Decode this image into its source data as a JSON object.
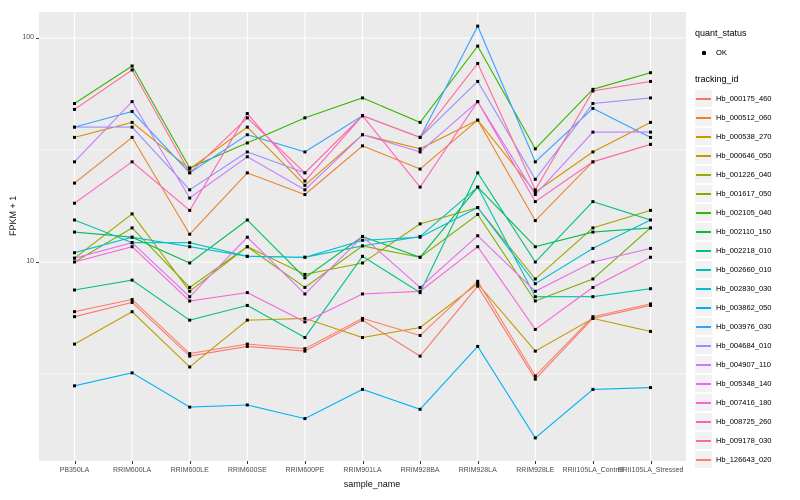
{
  "figure": {
    "background": "#ffffff",
    "panel_background": "#ebebeb",
    "gridline_color": "#ffffff",
    "tick_text_color": "#4d4d4d"
  },
  "legend": {
    "quant_status": {
      "title": "quant_status",
      "items": [
        {
          "label": "OK",
          "marker": "black-point"
        }
      ]
    },
    "tracking_id_title": "tracking_id"
  },
  "chart_data": {
    "type": "line",
    "title": "",
    "xlabel": "sample_name",
    "ylabel": "FPKM + 1",
    "y_scale": "log10",
    "y_tick_labels": [
      "100",
      "10"
    ],
    "y_tick_values": [
      100,
      10
    ],
    "y_minor_values": [
      31.62,
      3.162
    ],
    "ylim": [
      1.3,
      135
    ],
    "grid": true,
    "legend_position": "right",
    "point_marker": "black-dot",
    "x_categories": [
      "PB350LA",
      "RRIM600LA",
      "RRIM600LE",
      "RRIM600SE",
      "RRIM600PE",
      "RRIM901LA",
      "RRIM928BA",
      "RRIM928LA",
      "RRIM928LE",
      "RRII105LA_Control",
      "RRII105LA_Stressed"
    ],
    "series": [
      {
        "name": "Hb_000175_460",
        "color": "#F8766D",
        "values": [
          5.7,
          6.6,
          3.8,
          4.2,
          4.0,
          5.5,
          3.8,
          7.8,
          3.0,
          5.6,
          6.4
        ]
      },
      {
        "name": "Hb_000512_060",
        "color": "#EA8331",
        "values": [
          22.5,
          36,
          13.3,
          25,
          20,
          33,
          26,
          43,
          15.3,
          28,
          33.5
        ]
      },
      {
        "name": "Hb_000538_270",
        "color": "#D89000",
        "values": [
          36,
          42,
          26,
          40,
          22,
          37,
          32,
          43,
          20.5,
          31,
          42
        ]
      },
      {
        "name": "Hb_000646_050",
        "color": "#C09B00",
        "values": [
          4.3,
          6.0,
          3.4,
          5.5,
          5.6,
          4.6,
          5.1,
          8.0,
          4.0,
          5.6,
          4.9
        ]
      },
      {
        "name": "Hb_001226_040",
        "color": "#A3A500",
        "values": [
          10.4,
          16.4,
          7.4,
          11.7,
          8.8,
          9.9,
          14.8,
          17.5,
          8.4,
          14.2,
          17
        ]
      },
      {
        "name": "Hb_001617_050",
        "color": "#7CAE00",
        "values": [
          10.0,
          14.2,
          7.7,
          11.7,
          7.7,
          11.8,
          10.5,
          16.3,
          6.7,
          8.4,
          14.2
        ]
      },
      {
        "name": "Hb_002105_040",
        "color": "#39B600",
        "values": [
          51,
          75,
          26.3,
          34,
          44,
          54,
          42,
          92,
          32,
          59,
          70
        ]
      },
      {
        "name": "Hb_002110_150",
        "color": "#00BB4E",
        "values": [
          13.6,
          12.9,
          9.9,
          15.4,
          8.5,
          13,
          10.5,
          21.6,
          11.7,
          13.6,
          14.2
        ]
      },
      {
        "name": "Hb_002218_010",
        "color": "#00C087",
        "values": [
          7.5,
          8.3,
          5.5,
          6.4,
          4.6,
          10.6,
          7.3,
          25,
          10,
          18.6,
          15.4
        ]
      },
      {
        "name": "Hb_002660_010",
        "color": "#00C0B2",
        "values": [
          15.4,
          12.2,
          12.2,
          10.6,
          10.5,
          11.8,
          13.0,
          21.6,
          7.0,
          7.0,
          7.6
        ]
      },
      {
        "name": "Hb_002830_030",
        "color": "#00BCD8",
        "values": [
          11.0,
          12.9,
          11.7,
          10.6,
          10.5,
          12.5,
          12.9,
          17.5,
          8.0,
          11.5,
          15.4
        ]
      },
      {
        "name": "Hb_003862_050",
        "color": "#00B0F6",
        "values": [
          2.8,
          3.2,
          2.25,
          2.3,
          2.0,
          2.7,
          2.2,
          4.2,
          1.64,
          2.7,
          2.75
        ]
      },
      {
        "name": "Hb_003976_030",
        "color": "#35A2FF",
        "values": [
          40,
          47,
          25,
          37,
          31,
          45,
          36,
          113,
          28,
          48.5,
          36
        ]
      },
      {
        "name": "Hb_004684_010",
        "color": "#9590FF",
        "values": [
          40,
          40,
          21,
          31,
          25,
          45,
          36,
          64,
          23.4,
          51,
          54
        ]
      },
      {
        "name": "Hb_004907_110",
        "color": "#C77CFF",
        "values": [
          28,
          52,
          19.3,
          29.5,
          21,
          37,
          31,
          52,
          20,
          38,
          38
        ]
      },
      {
        "name": "Hb_005348_140",
        "color": "#E76BF3",
        "values": [
          10.4,
          12.2,
          7.0,
          12.9,
          7.2,
          13,
          7.7,
          13.1,
          7.4,
          10,
          11.5
        ]
      },
      {
        "name": "Hb_007416_180",
        "color": "#FA62DB",
        "values": [
          10,
          11.7,
          6.7,
          7.3,
          5.4,
          7.2,
          7.4,
          11.7,
          5.0,
          7.7,
          10.5
        ]
      },
      {
        "name": "Hb_008725_260",
        "color": "#FF62BC",
        "values": [
          18.3,
          28,
          17,
          46,
          23,
          45,
          21.6,
          52,
          18.6,
          28,
          33.5
        ]
      },
      {
        "name": "Hb_009178_030",
        "color": "#FF6A98",
        "values": [
          48,
          72,
          25,
          44,
          25,
          45,
          36,
          77,
          21,
          58,
          64
        ]
      },
      {
        "name": "Hb_126643_020",
        "color": "#FE8066",
        "values": [
          6.0,
          6.8,
          3.9,
          4.3,
          4.1,
          5.6,
          4.7,
          8.2,
          3.1,
          5.7,
          6.5
        ]
      }
    ]
  }
}
